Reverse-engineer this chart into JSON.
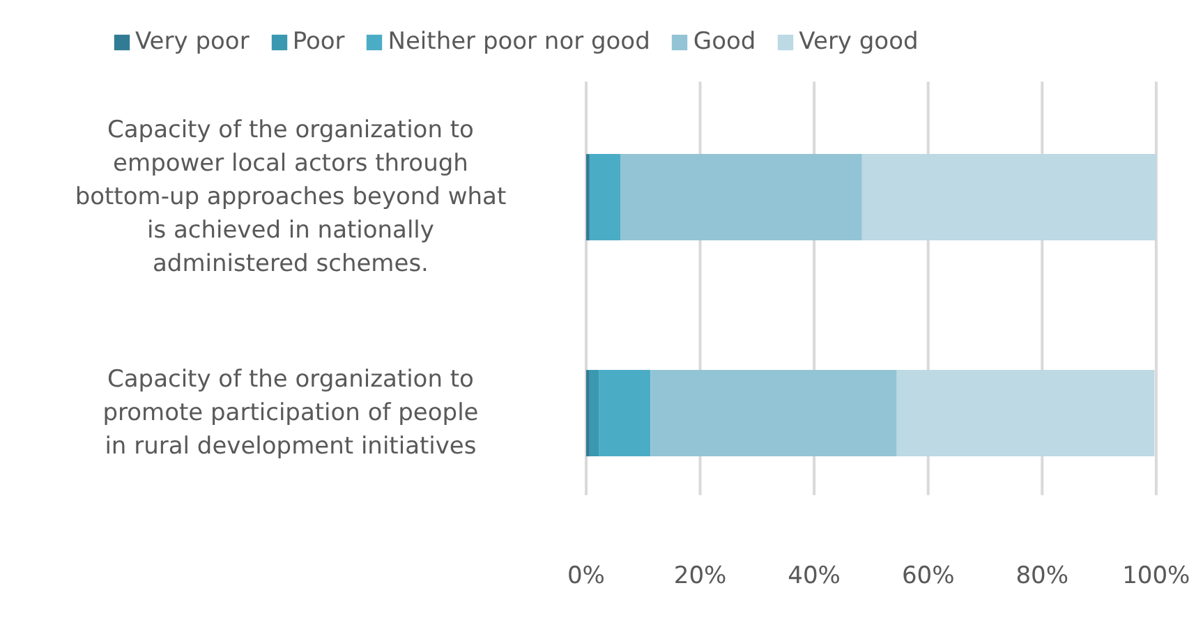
{
  "chart_data": {
    "type": "bar",
    "orientation": "horizontal",
    "stacked": true,
    "categories": [
      "Capacity of the organization to empower local actors through bottom-up approaches beyond what is achieved in nationally administered schemes.",
      "Capacity of the organization to promote participation of people in rural development initiatives"
    ],
    "series": [
      {
        "name": "Very poor",
        "color": "#327b94",
        "values": [
          0.6,
          0.6
        ]
      },
      {
        "name": "Poor",
        "color": "#3a98b0",
        "values": [
          0,
          1.7
        ]
      },
      {
        "name": "Neither poor nor good",
        "color": "#4bacc6",
        "values": [
          5.4,
          9.0
        ]
      },
      {
        "name": "Good",
        "color": "#92c4d5",
        "values": [
          42.4,
          43.2
        ]
      },
      {
        "name": "Very good",
        "color": "#bcd9e4",
        "values": [
          51.6,
          45.2
        ]
      }
    ],
    "xlim": [
      0,
      100
    ],
    "xticks": [
      {
        "value": 0,
        "label": "0%"
      },
      {
        "value": 20,
        "label": "20%"
      },
      {
        "value": 40,
        "label": "40%"
      },
      {
        "value": 60,
        "label": "60%"
      },
      {
        "value": 80,
        "label": "80%"
      },
      {
        "value": 100,
        "label": "100%"
      }
    ],
    "grid": "x",
    "legend": "top"
  }
}
